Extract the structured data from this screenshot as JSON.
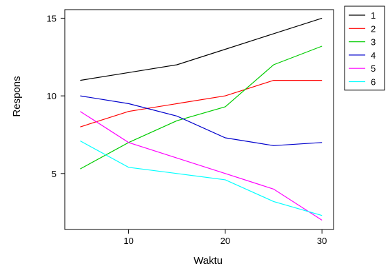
{
  "chart_data": {
    "type": "line",
    "title": "",
    "xlabel": "Waktu",
    "ylabel": "Respons",
    "xlim": [
      3.4,
      31.2
    ],
    "ylim": [
      1.4,
      15.55
    ],
    "x_ticks": [
      10,
      20,
      30
    ],
    "y_ticks": [
      5,
      10,
      15
    ],
    "grid": false,
    "legend_position": "right",
    "x": [
      5,
      10,
      15,
      20,
      25,
      30
    ],
    "series": [
      {
        "name": "1",
        "color": "#000000",
        "values": [
          11.0,
          11.5,
          12.0,
          13.0,
          14.0,
          15.0
        ]
      },
      {
        "name": "2",
        "color": "#ff0000",
        "values": [
          8.0,
          9.0,
          9.5,
          10.0,
          11.0,
          11.0
        ]
      },
      {
        "name": "3",
        "color": "#00cc00",
        "values": [
          5.3,
          7.0,
          8.4,
          9.3,
          12.0,
          13.2
        ]
      },
      {
        "name": "4",
        "color": "#0000cc",
        "values": [
          10.0,
          9.5,
          8.7,
          7.3,
          6.8,
          7.0
        ]
      },
      {
        "name": "5",
        "color": "#ff00ff",
        "values": [
          9.0,
          7.0,
          6.0,
          5.0,
          4.0,
          2.0
        ]
      },
      {
        "name": "6",
        "color": "#00ffff",
        "values": [
          7.1,
          5.4,
          5.0,
          4.6,
          3.2,
          2.3
        ]
      }
    ]
  }
}
